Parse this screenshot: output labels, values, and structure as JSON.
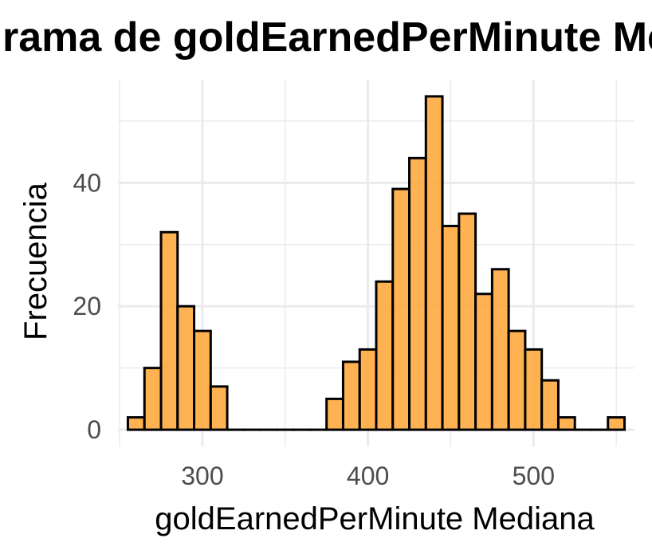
{
  "chart_data": {
    "type": "bar",
    "title": "Histograma de goldEarnedPerMinute Mediana",
    "xlabel": "goldEarnedPerMinute Mediana",
    "ylabel": "Frecuencia",
    "bin_width": 10,
    "bin_centers": [
      260,
      270,
      280,
      290,
      300,
      310,
      320,
      330,
      340,
      350,
      360,
      370,
      380,
      390,
      400,
      410,
      420,
      430,
      440,
      450,
      460,
      470,
      480,
      490,
      500,
      510,
      520,
      530,
      540,
      550
    ],
    "values": [
      2,
      10,
      32,
      20,
      16,
      7,
      0,
      0,
      0,
      0,
      0,
      0,
      5,
      11,
      13,
      24,
      39,
      44,
      54,
      33,
      35,
      22,
      26,
      16,
      13,
      8,
      2,
      0,
      0,
      2
    ],
    "x_ticks": [
      300,
      400,
      500
    ],
    "y_ticks": [
      0,
      20,
      40
    ],
    "xlim": [
      249,
      561
    ],
    "ylim": [
      -2.7,
      56.7
    ],
    "fill_color": "#ffa533",
    "edge_color": "#000000",
    "grid": true
  }
}
